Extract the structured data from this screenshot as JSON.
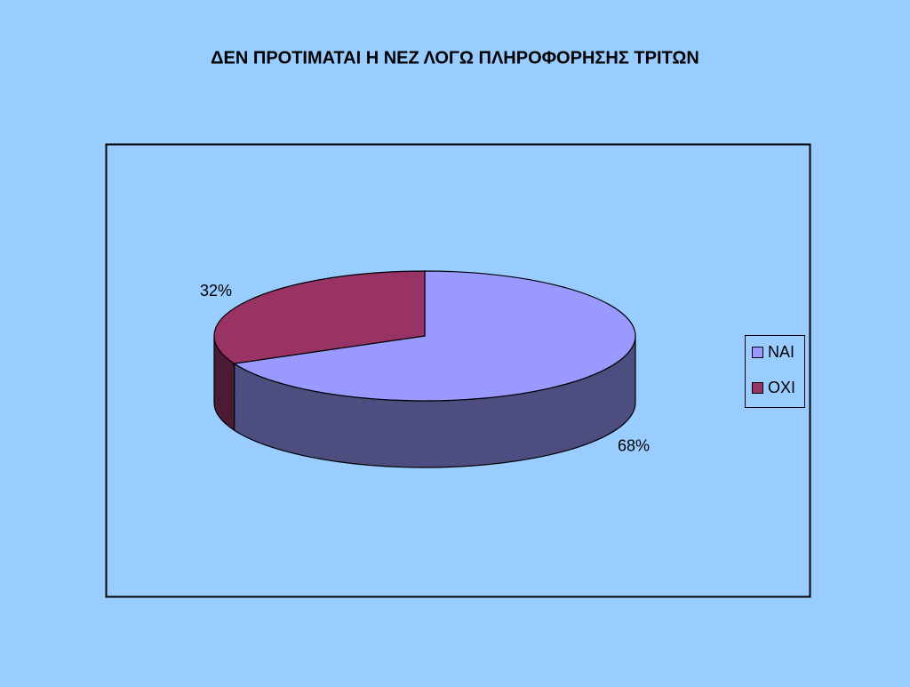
{
  "chart_data": {
    "type": "pie",
    "title": "ΔΕΝ ΠΡΟΤΙΜΑΤΑΙ Η ΝΕΖ ΛΟΓΩ ΠΛΗΡΟΦΟΡΗΣΗΣ ΤΡΙΤΩΝ",
    "categories": [
      "NAI",
      "OXI"
    ],
    "values": [
      68,
      32
    ],
    "value_labels": [
      "68%",
      "32%"
    ],
    "colors": [
      "#9999ff",
      "#993366"
    ],
    "legend": "right"
  }
}
